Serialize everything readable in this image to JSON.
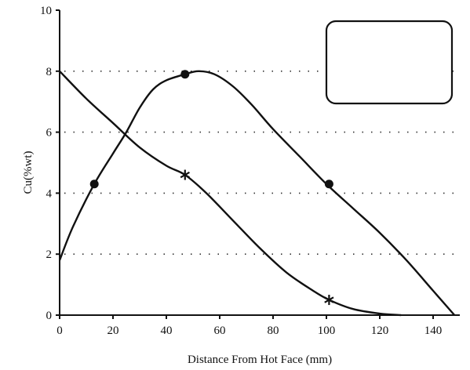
{
  "chart_data": {
    "type": "line",
    "title": "",
    "xlabel": "Distance From Hot Face (mm)",
    "ylabel": "Cu(%wt)",
    "xlim": [
      0,
      150
    ],
    "ylim": [
      0,
      10
    ],
    "x_ticks": [
      0,
      20,
      40,
      60,
      80,
      100,
      120,
      140
    ],
    "y_ticks": [
      0,
      2,
      4,
      6,
      8,
      10
    ],
    "grid": "horizontal dotted at y = 2, 4, 6, 8",
    "legend": "top-right (empty box)",
    "series": [
      {
        "marker": "circle",
        "x": [
          0,
          5,
          13,
          20,
          25,
          30,
          35,
          40,
          47,
          52,
          58,
          65,
          72,
          80,
          90,
          100,
          110,
          120,
          130,
          140,
          148
        ],
        "y": [
          1.8,
          2.9,
          4.3,
          5.3,
          6.0,
          6.8,
          7.4,
          7.7,
          7.9,
          8.0,
          7.9,
          7.5,
          6.9,
          6.1,
          5.2,
          4.3,
          3.5,
          2.7,
          1.8,
          0.8,
          0.0
        ],
        "marker_points": {
          "x": [
            13,
            47,
            101
          ],
          "y": [
            4.3,
            7.9,
            4.3
          ]
        }
      },
      {
        "marker": "star",
        "x": [
          0,
          10,
          20,
          30,
          40,
          47,
          55,
          65,
          75,
          85,
          95,
          101,
          110,
          120,
          128
        ],
        "y": [
          8.0,
          7.1,
          6.3,
          5.5,
          4.9,
          4.6,
          4.0,
          3.1,
          2.2,
          1.4,
          0.8,
          0.5,
          0.2,
          0.05,
          0.0
        ],
        "marker_points": {
          "x": [
            47,
            101
          ],
          "y": [
            4.6,
            0.5
          ]
        }
      }
    ]
  }
}
